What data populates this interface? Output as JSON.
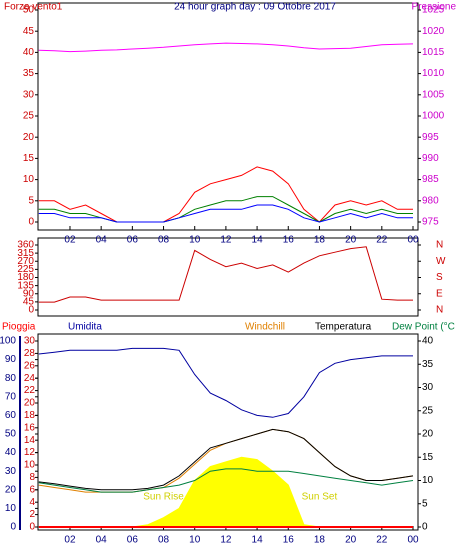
{
  "chart_data": [
    {
      "type": "line",
      "title": "24 hour graph day : 09 Ottobre 2017",
      "y_label": "Forza vento1",
      "y2_label": "Pressione",
      "xlim": [
        0,
        24
      ],
      "xticks": [
        {
          "value": 2,
          "label": "02"
        },
        {
          "value": 4,
          "label": "04"
        },
        {
          "value": 6,
          "label": "06"
        },
        {
          "value": 8,
          "label": "08"
        },
        10,
        12,
        14,
        16,
        18,
        20,
        22,
        {
          "value": 24,
          "label": "00"
        }
      ],
      "ylim": [
        0,
        50
      ],
      "yticks": [
        0,
        5,
        10,
        15,
        20,
        25,
        30,
        35,
        40,
        45,
        50
      ],
      "y2lim": [
        975,
        1025
      ],
      "y2ticks": [
        975,
        980,
        985,
        990,
        995,
        1000,
        1005,
        1010,
        1015,
        1020,
        1025
      ],
      "x": [
        0,
        1,
        2,
        3,
        4,
        5,
        6,
        7,
        8,
        9,
        10,
        11,
        12,
        13,
        14,
        15,
        16,
        17,
        18,
        19,
        20,
        21,
        22,
        23,
        24
      ],
      "series": [
        {
          "color": "#ff00ff",
          "axis": "y2",
          "values": [
            1015.5,
            1015.4,
            1015.2,
            1015.3,
            1015.5,
            1015.6,
            1015.8,
            1016,
            1016.2,
            1016.5,
            1016.8,
            1017,
            1017.2,
            1017.1,
            1017,
            1016.8,
            1016.5,
            1016.1,
            1015.8,
            1015.9,
            1016,
            1016.4,
            1016.8,
            1016.9,
            1017
          ]
        },
        {
          "color": "#ff0000",
          "axis": "y",
          "values": [
            5,
            5,
            3,
            4,
            2,
            0,
            0,
            0,
            0,
            2,
            7,
            9,
            10,
            11,
            13,
            12,
            9,
            3,
            0,
            4,
            5,
            4,
            5,
            3,
            3
          ]
        },
        {
          "color": "#008000",
          "axis": "y",
          "values": [
            3,
            3,
            2,
            2,
            1,
            0,
            0,
            0,
            0,
            1,
            3,
            4,
            5,
            5,
            6,
            6,
            4,
            2,
            0,
            2,
            3,
            2,
            3,
            2,
            2
          ]
        },
        {
          "color": "#0000ff",
          "axis": "y",
          "values": [
            2,
            2,
            1,
            1,
            1,
            0,
            0,
            0,
            0,
            1,
            2,
            3,
            3,
            3,
            4,
            4,
            3,
            1,
            0,
            1,
            2,
            1,
            2,
            1,
            1
          ]
        }
      ]
    },
    {
      "type": "line",
      "xlim": [
        0,
        24
      ],
      "ylim": [
        0,
        360
      ],
      "yticks": [
        0,
        45,
        90,
        135,
        180,
        225,
        270,
        315,
        360
      ],
      "y2lim": [
        0,
        360
      ],
      "y2ticks": [
        {
          "value": 360,
          "label": "N"
        },
        {
          "value": 270,
          "label": "W"
        },
        {
          "value": 180,
          "label": "S"
        },
        {
          "value": 90,
          "label": "E"
        },
        {
          "value": 0,
          "label": "N"
        }
      ],
      "x": [
        0,
        1,
        2,
        3,
        4,
        5,
        6,
        7,
        8,
        9,
        10,
        11,
        12,
        13,
        14,
        15,
        16,
        17,
        18,
        19,
        20,
        21,
        22,
        23,
        24
      ],
      "series": [
        {
          "color": "#cc0000",
          "axis": "y",
          "values": [
            44,
            44,
            72,
            72,
            55,
            55,
            55,
            55,
            55,
            55,
            330,
            280,
            240,
            260,
            230,
            250,
            210,
            260,
            300,
            320,
            340,
            350,
            60,
            55,
            55
          ]
        }
      ]
    },
    {
      "type": "line",
      "xlim": [
        0,
        24
      ],
      "xticks": [
        {
          "value": 2,
          "label": "02"
        },
        {
          "value": 4,
          "label": "04"
        },
        {
          "value": 6,
          "label": "06"
        },
        {
          "value": 8,
          "label": "08"
        },
        10,
        12,
        14,
        16,
        18,
        20,
        22,
        {
          "value": 24,
          "label": "00"
        }
      ],
      "ylim": [
        0,
        100
      ],
      "yticks": [
        0,
        10,
        20,
        30,
        40,
        50,
        60,
        70,
        80,
        90,
        100
      ],
      "y3lim": [
        0,
        30
      ],
      "y3ticks": [
        0,
        2,
        4,
        6,
        8,
        10,
        12,
        14,
        16,
        18,
        20,
        22,
        24,
        26,
        28,
        30
      ],
      "y2lim": [
        0,
        40
      ],
      "y2ticks": [
        0,
        5,
        10,
        15,
        20,
        25,
        30,
        35,
        40
      ],
      "x": [
        0,
        1,
        2,
        3,
        4,
        5,
        6,
        7,
        8,
        9,
        10,
        11,
        12,
        13,
        14,
        15,
        16,
        17,
        18,
        19,
        20,
        21,
        22,
        23,
        24
      ],
      "annotations": [
        {
          "text": "Sun Rise",
          "x": 8
        },
        {
          "text": "Sun Set",
          "x": 18
        }
      ],
      "series": [
        {
          "name": "Pioggia",
          "color": "#ff0000",
          "axis": "y3",
          "values": [
            0,
            0,
            0,
            0,
            0,
            0,
            0,
            0,
            0,
            0,
            0,
            0,
            0,
            0,
            0,
            0,
            0,
            0,
            0,
            0,
            0,
            0,
            0,
            0,
            0
          ]
        },
        {
          "name": "Umidita",
          "color": "#0000a0",
          "axis": "y",
          "values": [
            93,
            94,
            95,
            95,
            95,
            95,
            96,
            96,
            96,
            95,
            82,
            72,
            68,
            63,
            60,
            59,
            61,
            70,
            83,
            88,
            90,
            91,
            92,
            92,
            92
          ]
        },
        {
          "name": "Windchill",
          "color": "#e08000",
          "axis": "y2",
          "values": [
            9,
            8.5,
            8,
            7.5,
            7.5,
            7.5,
            7.5,
            8,
            8.5,
            10.5,
            13.5,
            16.5,
            18,
            19,
            20,
            21,
            20.5,
            19,
            16,
            13,
            11,
            10,
            10,
            10.5,
            11
          ]
        },
        {
          "name": "Temperatura",
          "color": "#000000",
          "axis": "y2",
          "values": [
            9.7,
            9.3,
            8.8,
            8.3,
            8,
            8,
            8,
            8.3,
            9,
            11,
            14,
            17,
            18,
            19,
            20,
            21,
            20.5,
            19,
            16,
            13,
            11,
            10,
            10,
            10.5,
            11
          ]
        },
        {
          "name": "Dew Point (°C",
          "color": "#008040",
          "axis": "y2",
          "values": [
            9.5,
            9,
            8.5,
            8,
            7.5,
            7.5,
            7.5,
            8,
            8.5,
            9,
            10,
            12,
            12.5,
            12.5,
            12,
            12,
            12,
            11.5,
            11,
            10.5,
            10,
            9.5,
            9,
            9.5,
            10
          ]
        },
        {
          "color": "#ffff00",
          "axis": "y2",
          "fill": true,
          "values": [
            0,
            0,
            0,
            0,
            0,
            0,
            0,
            0.5,
            2,
            4,
            10,
            13,
            14,
            15,
            14.5,
            12,
            9,
            0.5,
            0,
            0,
            0,
            0,
            0,
            0,
            0
          ]
        }
      ]
    }
  ]
}
